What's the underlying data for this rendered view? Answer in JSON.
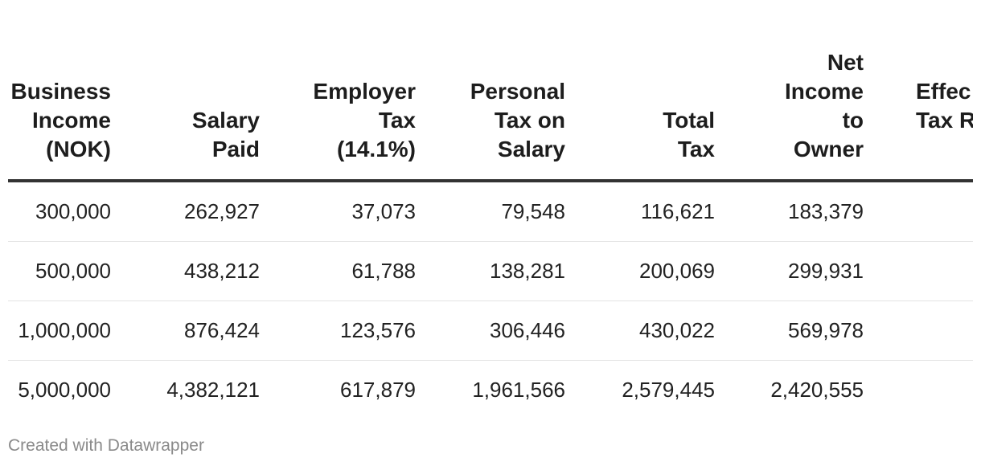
{
  "chart_data": {
    "type": "table",
    "columns": [
      [
        "Business",
        "Income",
        "(NOK)"
      ],
      [
        "Salary",
        "Paid"
      ],
      [
        "Employer",
        "Tax",
        "(14.1%)"
      ],
      [
        "Personal",
        "Tax on",
        "Salary"
      ],
      [
        "Total",
        "Tax"
      ],
      [
        "Net",
        "Income",
        "to",
        "Owner"
      ],
      [
        "Effec",
        "Tax R"
      ]
    ],
    "rows": [
      [
        "300,000",
        "262,927",
        "37,073",
        "79,548",
        "116,621",
        "183,379",
        ""
      ],
      [
        "500,000",
        "438,212",
        "61,788",
        "138,281",
        "200,069",
        "299,931",
        ""
      ],
      [
        "1,000,000",
        "876,424",
        "123,576",
        "306,446",
        "430,022",
        "569,978",
        ""
      ],
      [
        "5,000,000",
        "4,382,121",
        "617,879",
        "1,961,566",
        "2,579,445",
        "2,420,555",
        ""
      ]
    ]
  },
  "footer": {
    "credit": "Created with Datawrapper"
  }
}
